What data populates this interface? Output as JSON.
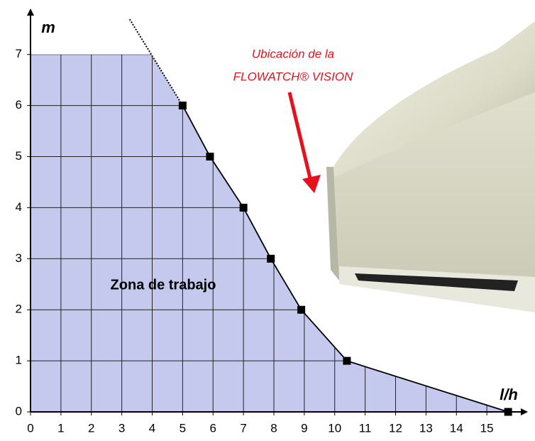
{
  "chart_data": {
    "type": "line",
    "x_label": "l/h",
    "y_label": "m",
    "annotations": [
      "Zona de trabajo",
      "Ubicación de la",
      "FLOWATCH® VISION"
    ],
    "series": [
      {
        "color": "#000000",
        "x": [
          5,
          5.9,
          7,
          7.9,
          8.9,
          10.4,
          15.7
        ],
        "values": [
          6,
          5,
          4,
          3,
          2,
          1,
          0
        ]
      },
      {
        "color": "#000000",
        "x": [
          3.26,
          5
        ],
        "values": [
          7.69,
          6
        ]
      }
    ],
    "area_color": "#c5c9ee",
    "xlim": [
      0,
      16
    ],
    "ylim": [
      0,
      7.9
    ],
    "xticks": [
      0,
      1,
      2,
      3,
      4,
      5,
      6,
      7,
      8,
      9,
      10,
      11,
      12,
      13,
      14,
      15
    ],
    "yticks": [
      0,
      1,
      2,
      3,
      4,
      5,
      6,
      7
    ],
    "grid": true
  }
}
